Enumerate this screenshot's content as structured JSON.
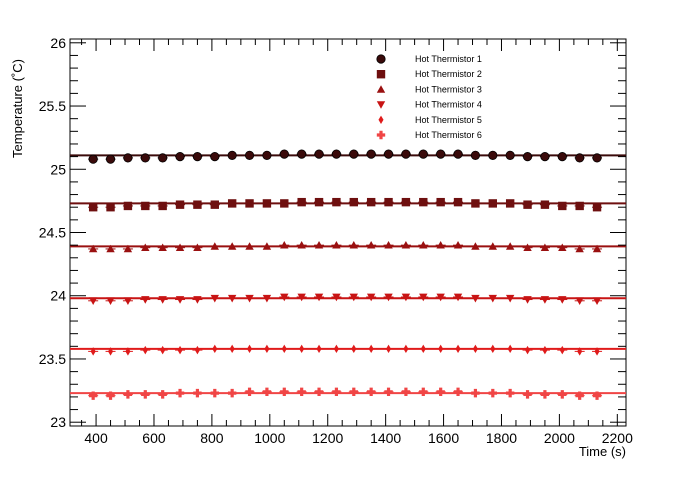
{
  "chart_data": {
    "type": "scatter",
    "title": "",
    "xlabel": "Time (s)",
    "ylabel": "Temperature (˚C)",
    "xlim": [
      310,
      2230
    ],
    "ylim": [
      22.97,
      26.03
    ],
    "xticks": [
      400,
      600,
      800,
      1000,
      1200,
      1400,
      1600,
      1800,
      2000,
      2200
    ],
    "yticks": [
      23,
      23.5,
      24,
      24.5,
      25,
      25.5,
      26
    ],
    "ytick_labels": [
      "23",
      "23.5",
      "24",
      "24.5",
      "25",
      "25.5",
      "26"
    ],
    "grid": false,
    "legend_position": "top-right",
    "x": [
      390,
      450,
      510,
      570,
      630,
      690,
      750,
      810,
      870,
      930,
      990,
      1050,
      1110,
      1170,
      1230,
      1290,
      1350,
      1410,
      1470,
      1530,
      1590,
      1650,
      1710,
      1770,
      1830,
      1890,
      1950,
      2010,
      2070,
      2130
    ],
    "series": [
      {
        "name": "Hot Thermistor 1",
        "marker": "circle",
        "color": "#3a0a0a",
        "fit_value": 25.11,
        "values": [
          25.08,
          25.08,
          25.09,
          25.09,
          25.09,
          25.1,
          25.1,
          25.1,
          25.11,
          25.11,
          25.11,
          25.12,
          25.12,
          25.12,
          25.12,
          25.12,
          25.12,
          25.12,
          25.12,
          25.12,
          25.12,
          25.12,
          25.11,
          25.11,
          25.11,
          25.1,
          25.1,
          25.1,
          25.09,
          25.09
        ]
      },
      {
        "name": "Hot Thermistor 2",
        "marker": "square",
        "color": "#6e0f0f",
        "fit_value": 24.73,
        "values": [
          24.7,
          24.7,
          24.71,
          24.71,
          24.71,
          24.72,
          24.72,
          24.72,
          24.73,
          24.73,
          24.73,
          24.73,
          24.74,
          24.74,
          24.74,
          24.74,
          24.74,
          24.74,
          24.74,
          24.74,
          24.74,
          24.74,
          24.73,
          24.73,
          24.73,
          24.72,
          24.72,
          24.71,
          24.71,
          24.7
        ]
      },
      {
        "name": "Hot Thermistor 3",
        "marker": "triangle-up",
        "color": "#9a1010",
        "fit_value": 24.39,
        "values": [
          24.37,
          24.37,
          24.37,
          24.38,
          24.38,
          24.38,
          24.38,
          24.39,
          24.39,
          24.39,
          24.39,
          24.4,
          24.4,
          24.4,
          24.4,
          24.4,
          24.4,
          24.4,
          24.4,
          24.4,
          24.4,
          24.4,
          24.39,
          24.39,
          24.39,
          24.38,
          24.38,
          24.38,
          24.37,
          24.37
        ]
      },
      {
        "name": "Hot Thermistor 4",
        "marker": "triangle-down",
        "color": "#c81414",
        "fit_value": 23.98,
        "values": [
          23.96,
          23.96,
          23.96,
          23.97,
          23.97,
          23.97,
          23.97,
          23.98,
          23.98,
          23.98,
          23.98,
          23.99,
          23.99,
          23.99,
          23.99,
          23.99,
          23.99,
          23.99,
          23.99,
          23.99,
          23.99,
          23.99,
          23.98,
          23.98,
          23.98,
          23.97,
          23.97,
          23.97,
          23.96,
          23.96
        ]
      },
      {
        "name": "Hot Thermistor 5",
        "marker": "diamond",
        "color": "#e01b1b",
        "fit_value": 23.58,
        "values": [
          23.56,
          23.56,
          23.56,
          23.57,
          23.57,
          23.57,
          23.57,
          23.58,
          23.58,
          23.58,
          23.58,
          23.58,
          23.58,
          23.58,
          23.58,
          23.58,
          23.58,
          23.58,
          23.58,
          23.58,
          23.58,
          23.58,
          23.58,
          23.58,
          23.58,
          23.57,
          23.57,
          23.57,
          23.56,
          23.56
        ]
      },
      {
        "name": "Hot Thermistor 6",
        "marker": "cross",
        "color": "#f04545",
        "fit_value": 23.23,
        "values": [
          23.21,
          23.21,
          23.22,
          23.22,
          23.22,
          23.23,
          23.23,
          23.23,
          23.23,
          23.24,
          23.24,
          23.24,
          23.24,
          23.24,
          23.24,
          23.24,
          23.24,
          23.24,
          23.24,
          23.24,
          23.24,
          23.24,
          23.23,
          23.23,
          23.23,
          23.22,
          23.22,
          23.22,
          23.21,
          23.21
        ]
      }
    ]
  }
}
